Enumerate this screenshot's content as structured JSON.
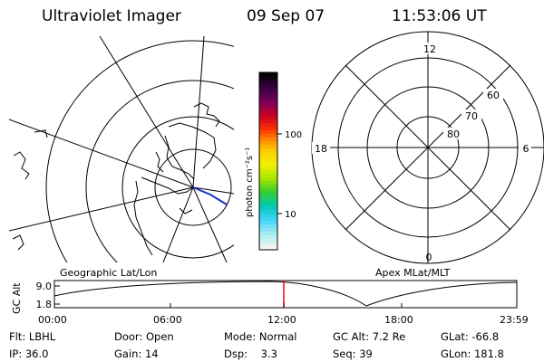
{
  "header": {
    "title": "Ultraviolet Imager",
    "date": "09 Sep 07",
    "time": "11:53:06 UT"
  },
  "colorbar": {
    "label": "photon cm⁻²s⁻¹",
    "ticks": [
      "100",
      "10"
    ]
  },
  "polar_plot": {
    "mlt_labels": [
      "12",
      "18",
      "6",
      "0"
    ],
    "mlat_labels": [
      "60",
      "70",
      "80"
    ]
  },
  "panel_labels": {
    "left": "Geographic Lat/Lon",
    "right": "Apex MLat/MLT"
  },
  "altitude_plot": {
    "ylabel": "GC Alt",
    "yticks": [
      "9.0",
      "1.8"
    ],
    "xticks": [
      "00:00",
      "06:00",
      "12:00",
      "18:00",
      "23:59"
    ],
    "current_time_marker": "12:00",
    "colors": {
      "marker": "#ff0000"
    }
  },
  "info": {
    "row1": [
      {
        "key": "Flt:",
        "value": "LBHL"
      },
      {
        "key": "Door:",
        "value": "Open"
      },
      {
        "key": "Mode:",
        "value": "Normal"
      },
      {
        "key": "GC Alt:",
        "value": "7.2 Re"
      },
      {
        "key": "GLat:",
        "value": "-66.8"
      }
    ],
    "row2": [
      {
        "key": "IP:",
        "value": "36.0"
      },
      {
        "key": "Gain:",
        "value": "14"
      },
      {
        "key": "Dsp:",
        "value": "3.3"
      },
      {
        "key": "Seq:",
        "value": "39"
      },
      {
        "key": "GLon:",
        "value": "181.8"
      }
    ]
  }
}
